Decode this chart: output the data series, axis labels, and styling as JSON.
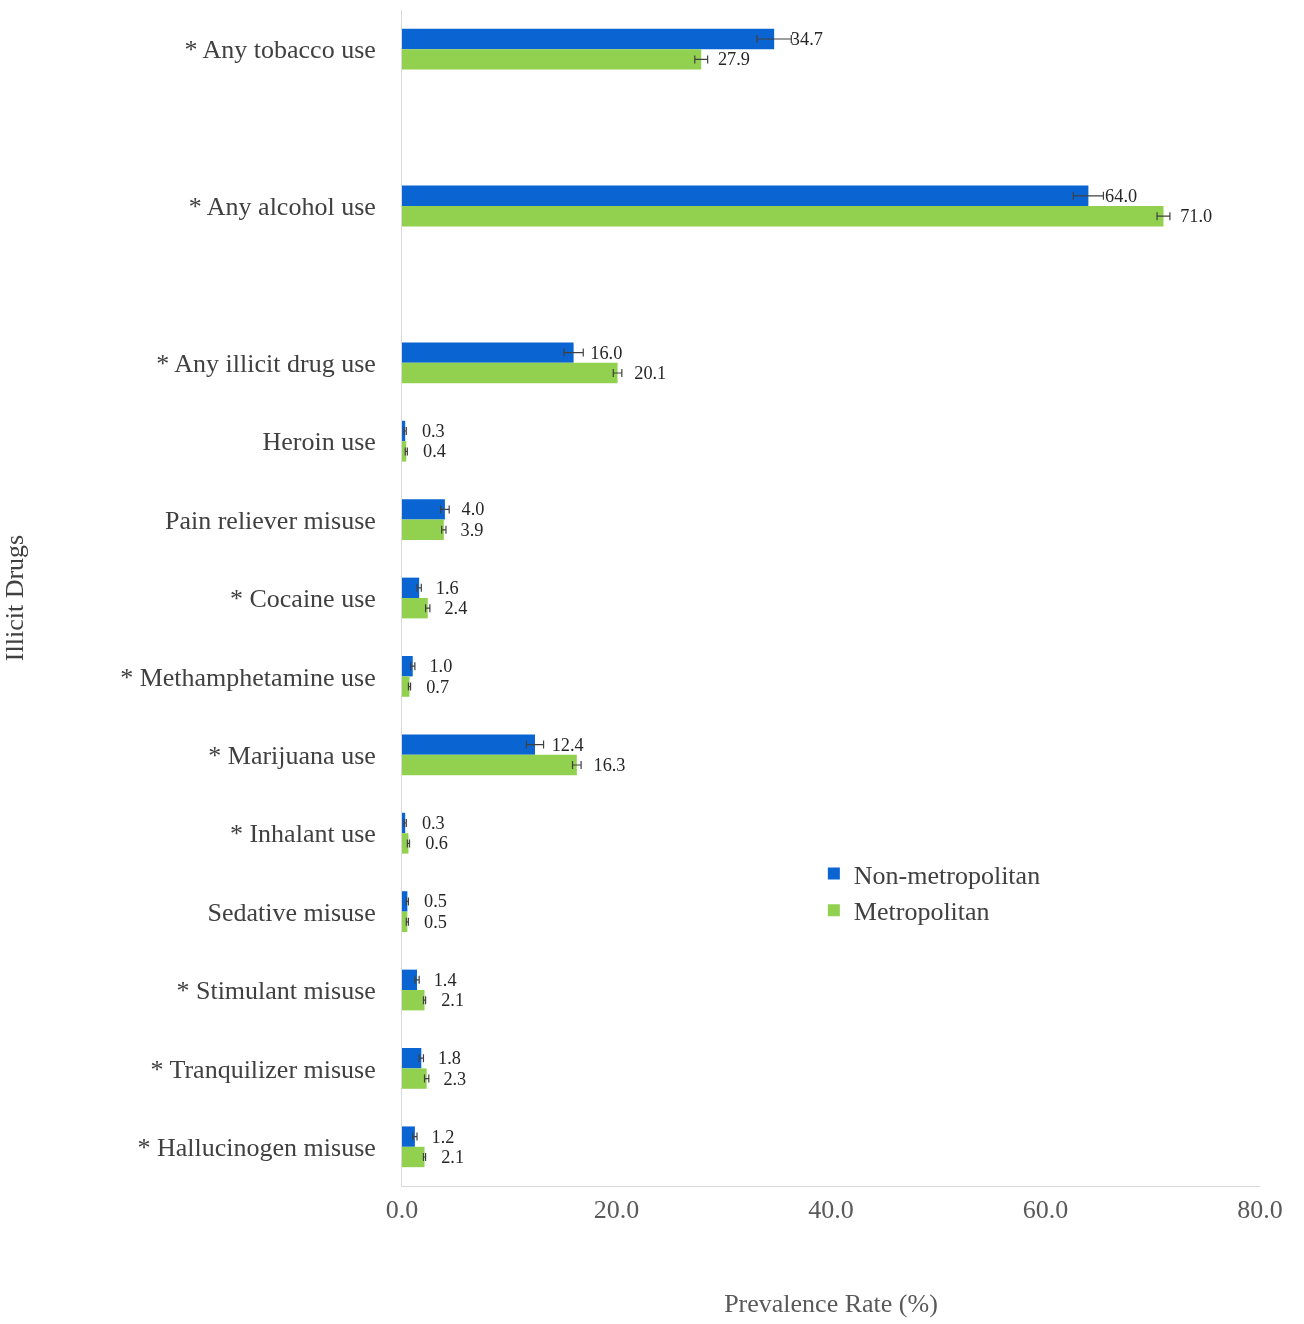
{
  "chart_data": {
    "type": "bar",
    "orientation": "horizontal",
    "xlabel": "Prevalence Rate (%)",
    "ylabel": "Illicit Drugs",
    "categories": [
      "* Any tobacco use",
      null,
      "* Any alcohol use",
      null,
      "* Any illicit drug use",
      "Heroin use",
      "Pain reliever misuse",
      "* Cocaine use",
      "* Methamphetamine use",
      "* Marijuana use",
      "* Inhalant use",
      "Sedative misuse",
      "* Stimulant misuse",
      "* Tranquilizer misuse",
      "* Hallucinogen misuse"
    ],
    "series": [
      {
        "name": "Non-metropolitan",
        "color": "#0a64d2",
        "values": [
          34.7,
          null,
          64.0,
          null,
          16.0,
          0.3,
          4.0,
          1.6,
          1.0,
          12.4,
          0.3,
          0.5,
          1.4,
          1.8,
          1.2
        ],
        "value_labels": [
          "34.7",
          null,
          "64.0",
          null,
          "16.0",
          "0.3",
          "4.0",
          "1.6",
          "1.0",
          "12.4",
          "0.3",
          "0.5",
          "1.4",
          "1.8",
          "1.2"
        ],
        "errors": [
          1.6,
          null,
          1.4,
          null,
          0.9,
          0.1,
          0.4,
          0.2,
          0.2,
          0.8,
          0.1,
          0.1,
          0.2,
          0.2,
          0.2
        ]
      },
      {
        "name": "Metropolitan",
        "color": "#92d050",
        "values": [
          27.9,
          null,
          71.0,
          null,
          20.1,
          0.4,
          3.9,
          2.4,
          0.7,
          16.3,
          0.6,
          0.5,
          2.1,
          2.3,
          2.1
        ],
        "value_labels": [
          "27.9",
          null,
          "71.0",
          null,
          "20.1",
          "0.4",
          "3.9",
          "2.4",
          "0.7",
          "16.3",
          "0.6",
          "0.5",
          "2.1",
          "2.3",
          "2.1"
        ],
        "errors": [
          0.6,
          null,
          0.6,
          null,
          0.4,
          0.1,
          0.2,
          0.2,
          0.1,
          0.4,
          0.1,
          0.1,
          0.1,
          0.2,
          0.1
        ]
      }
    ],
    "xlim": [
      0,
      80
    ],
    "xticks": [
      {
        "value": 0,
        "label": "0.0"
      },
      {
        "value": 20,
        "label": "20.0"
      },
      {
        "value": 40,
        "label": "40.0"
      },
      {
        "value": 60,
        "label": "60.0"
      },
      {
        "value": 80,
        "label": "80.0"
      }
    ],
    "grid": false,
    "legend": "center right"
  }
}
